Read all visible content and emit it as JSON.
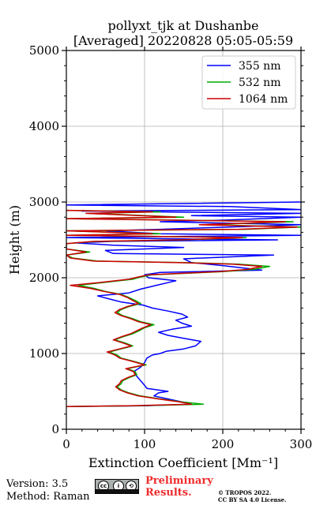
{
  "chart_data": {
    "type": "line",
    "title": "pollyxt_tjk at Dushanbe",
    "subtitle": "[Averaged] 20220828 05:05-05:59",
    "xlabel": "Extinction Coefficient [Mm⁻¹]",
    "ylabel": "Height (m)",
    "xlim": [
      0,
      300
    ],
    "ylim": [
      0,
      5000
    ],
    "xticks": [
      "0",
      "100",
      "200",
      "300"
    ],
    "yticks": [
      "0",
      "1000",
      "2000",
      "3000",
      "4000",
      "5000"
    ],
    "grid": true,
    "legend_position": "top-right",
    "series": [
      {
        "name": "355 nm",
        "color": "#0000ff",
        "points": [
          [
            0,
            300
          ],
          [
            100,
            310
          ],
          [
            160,
            330
          ],
          [
            148,
            360
          ],
          [
            130,
            400
          ],
          [
            112,
            440
          ],
          [
            118,
            480
          ],
          [
            130,
            500
          ],
          [
            103,
            540
          ],
          [
            100,
            580
          ],
          [
            95,
            640
          ],
          [
            90,
            700
          ],
          [
            86,
            760
          ],
          [
            95,
            820
          ],
          [
            100,
            880
          ],
          [
            103,
            940
          ],
          [
            110,
            980
          ],
          [
            120,
            1000
          ],
          [
            128,
            1030
          ],
          [
            150,
            1060
          ],
          [
            165,
            1100
          ],
          [
            172,
            1160
          ],
          [
            150,
            1200
          ],
          [
            130,
            1240
          ],
          [
            118,
            1280
          ],
          [
            135,
            1320
          ],
          [
            160,
            1360
          ],
          [
            148,
            1400
          ],
          [
            140,
            1440
          ],
          [
            155,
            1480
          ],
          [
            148,
            1520
          ],
          [
            130,
            1560
          ],
          [
            110,
            1600
          ],
          [
            98,
            1640
          ],
          [
            70,
            1680
          ],
          [
            55,
            1720
          ],
          [
            40,
            1760
          ],
          [
            80,
            1800
          ],
          [
            95,
            1850
          ],
          [
            115,
            1900
          ],
          [
            140,
            1960
          ],
          [
            105,
            2000
          ],
          [
            100,
            2040
          ],
          [
            120,
            2070
          ],
          [
            250,
            2100
          ],
          [
            200,
            2160
          ],
          [
            160,
            2200
          ],
          [
            150,
            2250
          ],
          [
            265,
            2300
          ],
          [
            60,
            2320
          ],
          [
            50,
            2360
          ],
          [
            150,
            2400
          ],
          [
            60,
            2430
          ],
          [
            10,
            2460
          ],
          [
            60,
            2480
          ],
          [
            270,
            2500
          ],
          [
            0,
            2530
          ],
          [
            300,
            2560
          ],
          [
            120,
            2580
          ],
          [
            50,
            2620
          ],
          [
            120,
            2640
          ],
          [
            240,
            2680
          ],
          [
            300,
            2700
          ],
          [
            120,
            2740
          ],
          [
            200,
            2760
          ],
          [
            300,
            2800
          ],
          [
            160,
            2820
          ],
          [
            300,
            2850
          ],
          [
            20,
            2880
          ],
          [
            300,
            2900
          ],
          [
            210,
            2940
          ],
          [
            0,
            2960
          ],
          [
            300,
            3000
          ]
        ]
      },
      {
        "name": "532 nm",
        "color": "#00aa00",
        "points": [
          [
            0,
            300
          ],
          [
            90,
            310
          ],
          [
            175,
            330
          ],
          [
            148,
            360
          ],
          [
            120,
            400
          ],
          [
            95,
            440
          ],
          [
            80,
            480
          ],
          [
            70,
            520
          ],
          [
            65,
            560
          ],
          [
            70,
            600
          ],
          [
            72,
            640
          ],
          [
            80,
            680
          ],
          [
            90,
            720
          ],
          [
            88,
            760
          ],
          [
            78,
            800
          ],
          [
            102,
            850
          ],
          [
            85,
            900
          ],
          [
            70,
            940
          ],
          [
            65,
            980
          ],
          [
            55,
            1020
          ],
          [
            70,
            1060
          ],
          [
            85,
            1100
          ],
          [
            75,
            1140
          ],
          [
            62,
            1180
          ],
          [
            72,
            1220
          ],
          [
            85,
            1260
          ],
          [
            93,
            1300
          ],
          [
            100,
            1340
          ],
          [
            112,
            1380
          ],
          [
            95,
            1420
          ],
          [
            85,
            1460
          ],
          [
            72,
            1500
          ],
          [
            65,
            1540
          ],
          [
            70,
            1580
          ],
          [
            80,
            1620
          ],
          [
            95,
            1660
          ],
          [
            88,
            1700
          ],
          [
            80,
            1740
          ],
          [
            70,
            1780
          ],
          [
            50,
            1820
          ],
          [
            35,
            1860
          ],
          [
            15,
            1900
          ],
          [
            50,
            1940
          ],
          [
            85,
            1980
          ],
          [
            95,
            2010
          ],
          [
            110,
            2040
          ],
          [
            155,
            2060
          ],
          [
            200,
            2080
          ],
          [
            240,
            2110
          ],
          [
            260,
            2150
          ],
          [
            220,
            2180
          ],
          [
            150,
            2200
          ],
          [
            40,
            2220
          ],
          [
            8,
            2260
          ],
          [
            0,
            2300
          ],
          [
            30,
            2340
          ],
          [
            0,
            2380
          ],
          [
            0,
            2450
          ],
          [
            40,
            2480
          ],
          [
            150,
            2500
          ],
          [
            230,
            2530
          ],
          [
            0,
            2560
          ],
          [
            120,
            2580
          ],
          [
            0,
            2620
          ],
          [
            230,
            2640
          ],
          [
            300,
            2670
          ],
          [
            180,
            2700
          ],
          [
            290,
            2740
          ],
          [
            0,
            2780
          ],
          [
            150,
            2800
          ],
          [
            30,
            2850
          ],
          [
            120,
            2870
          ],
          [
            0,
            2890
          ]
        ]
      },
      {
        "name": "1064 nm",
        "color": "#cc0000",
        "points": [
          [
            0,
            300
          ],
          [
            80,
            310
          ],
          [
            160,
            330
          ],
          [
            145,
            360
          ],
          [
            118,
            400
          ],
          [
            92,
            440
          ],
          [
            78,
            480
          ],
          [
            68,
            520
          ],
          [
            63,
            560
          ],
          [
            68,
            600
          ],
          [
            70,
            640
          ],
          [
            78,
            680
          ],
          [
            88,
            720
          ],
          [
            86,
            760
          ],
          [
            76,
            800
          ],
          [
            100,
            850
          ],
          [
            83,
            900
          ],
          [
            68,
            940
          ],
          [
            62,
            980
          ],
          [
            52,
            1020
          ],
          [
            68,
            1060
          ],
          [
            83,
            1100
          ],
          [
            72,
            1140
          ],
          [
            60,
            1180
          ],
          [
            70,
            1220
          ],
          [
            82,
            1260
          ],
          [
            90,
            1300
          ],
          [
            98,
            1340
          ],
          [
            108,
            1380
          ],
          [
            92,
            1420
          ],
          [
            82,
            1460
          ],
          [
            70,
            1500
          ],
          [
            62,
            1540
          ],
          [
            68,
            1580
          ],
          [
            78,
            1620
          ],
          [
            92,
            1660
          ],
          [
            85,
            1700
          ],
          [
            78,
            1740
          ],
          [
            68,
            1780
          ],
          [
            48,
            1820
          ],
          [
            30,
            1860
          ],
          [
            5,
            1900
          ],
          [
            45,
            1940
          ],
          [
            80,
            1980
          ],
          [
            92,
            2010
          ],
          [
            105,
            2040
          ],
          [
            150,
            2060
          ],
          [
            195,
            2080
          ],
          [
            232,
            2110
          ],
          [
            250,
            2150
          ],
          [
            212,
            2180
          ],
          [
            140,
            2200
          ],
          [
            35,
            2220
          ],
          [
            5,
            2260
          ],
          [
            0,
            2300
          ],
          [
            25,
            2340
          ],
          [
            0,
            2380
          ],
          [
            0,
            2450
          ],
          [
            35,
            2480
          ],
          [
            145,
            2500
          ],
          [
            225,
            2530
          ],
          [
            0,
            2560
          ],
          [
            110,
            2580
          ],
          [
            0,
            2620
          ],
          [
            220,
            2640
          ],
          [
            295,
            2670
          ],
          [
            170,
            2700
          ],
          [
            280,
            2740
          ],
          [
            0,
            2780
          ],
          [
            140,
            2800
          ],
          [
            25,
            2850
          ],
          [
            110,
            2870
          ],
          [
            0,
            2890
          ]
        ]
      }
    ]
  },
  "footer": {
    "version": "Version: 3.5",
    "method": "Method: Raman",
    "preliminary_line1": "Preliminary",
    "preliminary_line2": "Results.",
    "copyright_line1": "© TROPOS 2022.",
    "copyright_line2": "CC BY SA 4.0 License."
  }
}
